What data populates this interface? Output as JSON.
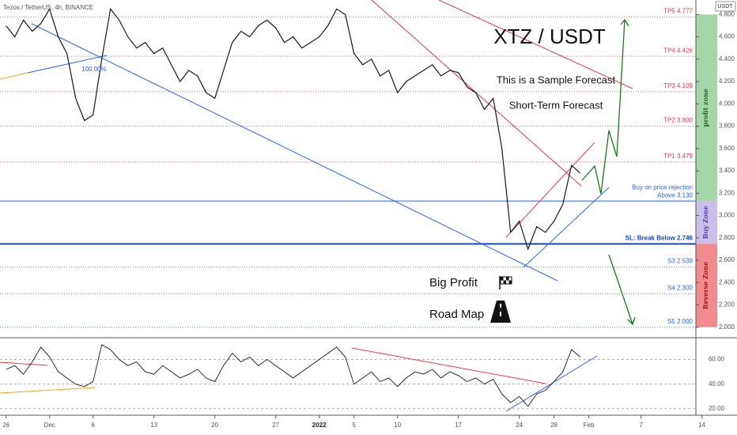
{
  "chart_data": [
    {
      "type": "line",
      "title": "Tezos / TetherUS, 4h, BINANCE",
      "currency": "USDT",
      "color": "#131722",
      "x": [
        0,
        1,
        2,
        3,
        4,
        5,
        6,
        7,
        8,
        9,
        10,
        11,
        12,
        13,
        14,
        15,
        16,
        17,
        18,
        19,
        20,
        21,
        22,
        23,
        24,
        25,
        26,
        27,
        28,
        29,
        30,
        31,
        32,
        33,
        34,
        35,
        36,
        37,
        38,
        39,
        40,
        41,
        42,
        43,
        44,
        45,
        46,
        47,
        48,
        49,
        50,
        51,
        52,
        53,
        54,
        55,
        56,
        57,
        58,
        59,
        60,
        61,
        62,
        63,
        64,
        65,
        66
      ],
      "values": [
        4.7,
        4.6,
        4.75,
        4.65,
        4.72,
        4.85,
        4.6,
        4.45,
        4.05,
        3.85,
        3.9,
        4.4,
        4.85,
        4.75,
        4.6,
        4.5,
        4.55,
        4.45,
        4.5,
        4.35,
        4.2,
        4.3,
        4.25,
        4.1,
        4.05,
        4.3,
        4.55,
        4.65,
        4.6,
        4.7,
        4.75,
        4.68,
        4.55,
        4.6,
        4.5,
        4.55,
        4.6,
        4.7,
        4.85,
        4.8,
        4.45,
        4.35,
        4.4,
        4.25,
        4.3,
        4.1,
        4.2,
        4.25,
        4.3,
        4.35,
        4.25,
        4.3,
        4.28,
        4.15,
        4.1,
        3.95,
        4.05,
        3.6,
        2.85,
        2.95,
        2.7,
        2.9,
        2.85,
        2.95,
        3.1,
        3.45,
        3.38
      ],
      "xlim": [
        -0.7,
        79.3
      ],
      "ylim": [
        1.92,
        4.93
      ],
      "yticks": [
        {
          "value": 2.0,
          "label": "2.000"
        },
        {
          "value": 2.2,
          "label": "2.200"
        },
        {
          "value": 2.4,
          "label": "2.400"
        },
        {
          "value": 2.6,
          "label": "2.600"
        },
        {
          "value": 2.8,
          "label": "2.800"
        },
        {
          "value": 3.0,
          "label": "3.000"
        },
        {
          "value": 3.2,
          "label": "3.200"
        },
        {
          "value": 3.4,
          "label": "3.400"
        },
        {
          "value": 3.6,
          "label": "3.600"
        },
        {
          "value": 3.8,
          "label": "3.800"
        },
        {
          "value": 4.0,
          "label": "4.000"
        },
        {
          "value": 4.2,
          "label": "4.200"
        },
        {
          "value": 4.4,
          "label": "4.400"
        },
        {
          "value": 4.6,
          "label": "4.600"
        },
        {
          "value": 4.8,
          "label": "4.800"
        }
      ],
      "levels": [
        {
          "label": "TP5 4.777",
          "value": 4.777,
          "color": "#f23645",
          "line_style": "dotted"
        },
        {
          "label": "TP4 4.426",
          "value": 4.426,
          "color": "#f23645",
          "line_style": "dotted"
        },
        {
          "label": "TP3 4.109",
          "value": 4.109,
          "color": "#f23645",
          "line_style": "dotted"
        },
        {
          "label": "TP2 3.800",
          "value": 3.8,
          "color": "#f23645",
          "line_style": "dotted"
        },
        {
          "label": "TP1 3.479",
          "value": 3.479,
          "color": "#f23645",
          "line_style": "dotted"
        },
        {
          "label": "Above 3.130",
          "note": "Buy on price rejection",
          "value": 3.13,
          "color": "#2962ff",
          "line_style": "solid"
        },
        {
          "label": "SL: Break Below 2.746",
          "value": 2.746,
          "color": "#1848cc",
          "line_style": "thick"
        },
        {
          "label": "S3 2.539",
          "value": 2.539,
          "color": "#2962ff",
          "line_style": "dotted"
        },
        {
          "label": "S4 2.300",
          "value": 2.3,
          "color": "#2962ff",
          "line_style": "dotted"
        },
        {
          "label": "S5 2.000",
          "value": 2.0,
          "color": "#2962ff",
          "line_style": "dotted"
        }
      ],
      "zones": [
        {
          "label": "profit zone",
          "from": 3.13,
          "to": 4.8,
          "color": "#a5d6a7"
        },
        {
          "label": "Buy Zone",
          "from": 2.746,
          "to": 3.13,
          "color": "#c9bfe8"
        },
        {
          "label": "Reverse Zone",
          "from": 2.0,
          "to": 2.746,
          "color": "#f28b8b"
        }
      ],
      "annotations": {
        "heading": "XTZ / USDT",
        "line1": "This is a Sample Forecast",
        "line2": "Short-Term Forecast",
        "big_profit": "Big Profit",
        "road_map": "Road Map",
        "fib": "100.00%"
      }
    },
    {
      "type": "line",
      "color": "#131722",
      "x": [
        0,
        1,
        2,
        3,
        4,
        5,
        6,
        7,
        8,
        9,
        10,
        11,
        12,
        13,
        14,
        15,
        16,
        17,
        18,
        19,
        20,
        21,
        22,
        23,
        24,
        25,
        26,
        27,
        28,
        29,
        30,
        31,
        32,
        33,
        34,
        35,
        36,
        37,
        38,
        39,
        40,
        41,
        42,
        43,
        44,
        45,
        46,
        47,
        48,
        49,
        50,
        51,
        52,
        53,
        54,
        55,
        56,
        57,
        58,
        59,
        60,
        61,
        62,
        63,
        64,
        65,
        66
      ],
      "values": [
        52,
        55,
        48,
        58,
        70,
        62,
        50,
        45,
        40,
        38,
        42,
        72,
        68,
        60,
        55,
        58,
        50,
        48,
        55,
        50,
        45,
        48,
        52,
        45,
        42,
        55,
        65,
        58,
        62,
        55,
        60,
        55,
        50,
        45,
        50,
        55,
        60,
        65,
        70,
        62,
        40,
        45,
        50,
        42,
        45,
        38,
        45,
        50,
        48,
        52,
        45,
        50,
        47,
        42,
        45,
        40,
        44,
        32,
        25,
        30,
        22,
        32,
        35,
        42,
        50,
        68,
        62
      ],
      "xlim": [
        -0.7,
        79.3
      ],
      "ylim": [
        16.7,
        75.7
      ],
      "yticks": [
        {
          "value": 20,
          "label": "20.00"
        },
        {
          "value": 40,
          "label": "40.00"
        },
        {
          "value": 60,
          "label": "60.00"
        }
      ],
      "xticks": [
        {
          "value": 0,
          "label": "26"
        },
        {
          "value": 5,
          "label": "Dec"
        },
        {
          "value": 10,
          "label": "6"
        },
        {
          "value": 17,
          "label": "13"
        },
        {
          "value": 24,
          "label": "20"
        },
        {
          "value": 31,
          "label": "27"
        },
        {
          "value": 36,
          "label": "2022"
        },
        {
          "value": 40,
          "label": "5"
        },
        {
          "value": 45,
          "label": "10"
        },
        {
          "value": 52,
          "label": "17"
        },
        {
          "value": 59,
          "label": "24"
        },
        {
          "value": 63,
          "label": "28"
        },
        {
          "value": 67,
          "label": "Feb"
        },
        {
          "value": 73,
          "label": "7"
        },
        {
          "value": 80,
          "label": "14"
        }
      ]
    }
  ]
}
